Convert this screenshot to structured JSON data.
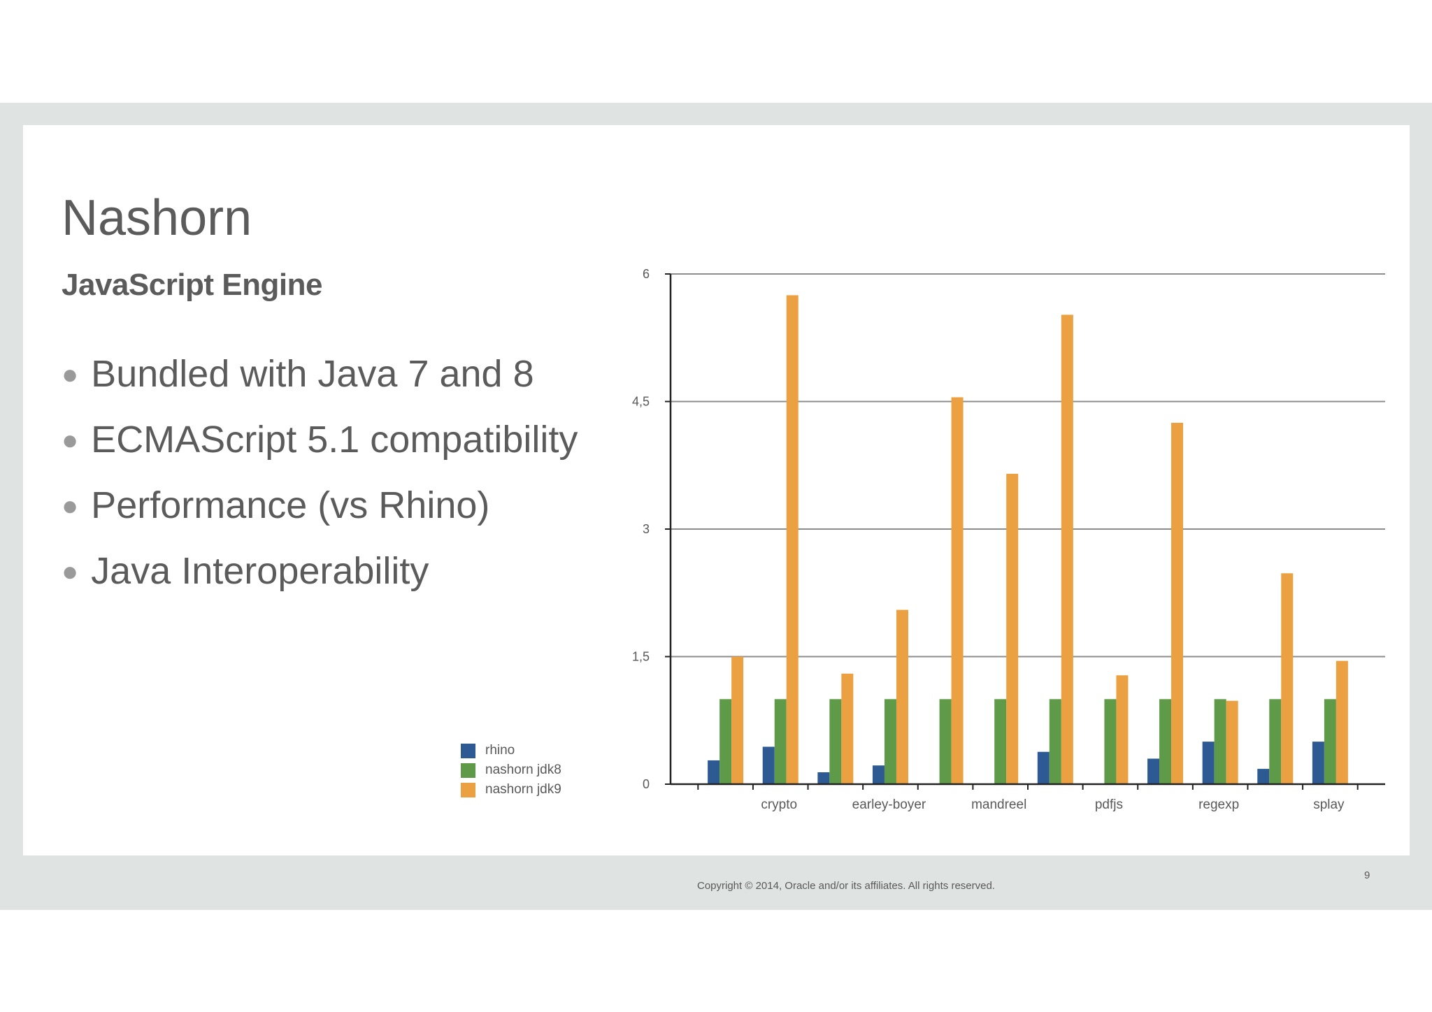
{
  "slide": {
    "title": "Nashorn",
    "subtitle": "JavaScript Engine",
    "bullets": [
      "Bundled with Java 7 and 8",
      "ECMAScript 5.1 compatibility",
      "Performance (vs Rhino)",
      "Java Interoperability"
    ],
    "copyright": "Copyright © 2014, Oracle and/or its affiliates. All rights reserved.",
    "page_number": "9"
  },
  "chart_data": {
    "type": "bar",
    "title": "",
    "xlabel": "",
    "ylabel": "",
    "ylim": [
      0,
      6
    ],
    "yticks": [
      0,
      1.5,
      3,
      4.5,
      6
    ],
    "ytick_labels": [
      "0",
      "1,5",
      "3",
      "4,5",
      "6"
    ],
    "grid": true,
    "legend_position": "left",
    "categories": [
      "",
      "crypto",
      "",
      "earley-boyer",
      "",
      "mandreel",
      "",
      "pdfjs",
      "",
      "regexp",
      "",
      "splay"
    ],
    "series": [
      {
        "name": "rhino",
        "color": "#2e5a94",
        "values": [
          0.28,
          0.44,
          0.14,
          0.22,
          0,
          0,
          0.38,
          0,
          0.3,
          0.5,
          0.18,
          0.5
        ]
      },
      {
        "name": "nashorn jdk8",
        "color": "#5f9a48",
        "values": [
          1,
          1,
          1,
          1,
          1,
          1,
          1,
          1,
          1,
          1,
          1,
          1
        ]
      },
      {
        "name": "nashorn jdk9",
        "color": "#eba142",
        "values": [
          1.5,
          5.75,
          1.3,
          2.05,
          4.55,
          3.65,
          5.52,
          1.28,
          4.25,
          0.98,
          2.48,
          1.45
        ]
      }
    ]
  }
}
